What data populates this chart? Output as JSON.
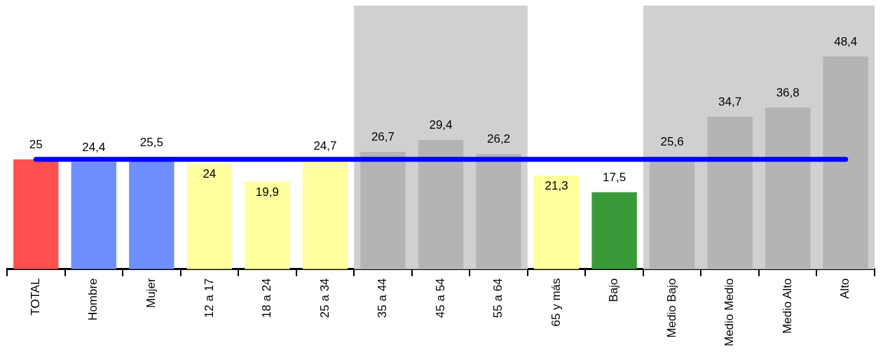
{
  "chart_data": {
    "type": "bar",
    "categories": [
      "TOTAL",
      "Hombre",
      "Mujer",
      "12 a 17",
      "18 a 24",
      "25 a 34",
      "35 a 44",
      "45 a 54",
      "55 a 64",
      "65 y más",
      "Bajo",
      "Medio Bajo",
      "Medio Medio",
      "Medio Alto",
      "Alto"
    ],
    "series": [
      {
        "values": [
          25,
          24.4,
          25.5,
          24,
          19.9,
          24.7,
          26.7,
          29.4,
          26.2,
          21.3,
          17.5,
          25.6,
          34.7,
          36.8,
          48.4
        ],
        "colors": [
          "#ff5050",
          "#6f8fff",
          "#6f8fff",
          "#ffff9e",
          "#ffff9e",
          "#ffff9e",
          "#b4b4b4",
          "#b4b4b4",
          "#b4b4b4",
          "#ffff9e",
          "#3a9a3a",
          "#b4b4b4",
          "#b4b4b4",
          "#b4b4b4",
          "#b4b4b4"
        ],
        "value_labels": [
          "25",
          "24,4",
          "25,5",
          "24",
          "19,9",
          "24,7",
          "26,7",
          "29,4",
          "26,2",
          "21,3",
          "17,5",
          "25,6",
          "34,7",
          "36,8",
          "48,4"
        ]
      },
      {
        "type": "line",
        "color": "#0000ff",
        "values": [
          25,
          25,
          25,
          25,
          25,
          25,
          25,
          25,
          25,
          25,
          25,
          25,
          25,
          25,
          25
        ]
      }
    ],
    "bands": [
      {
        "axis": "x",
        "from": "35 a 44",
        "to": "55 a 64",
        "color": "#d0d0d0"
      },
      {
        "axis": "x",
        "from": "Medio Bajo",
        "to": "Alto",
        "color": "#d0d0d0"
      }
    ],
    "ylim": [
      0,
      60
    ],
    "tick_labels": "x",
    "grid": false,
    "legend": false
  }
}
